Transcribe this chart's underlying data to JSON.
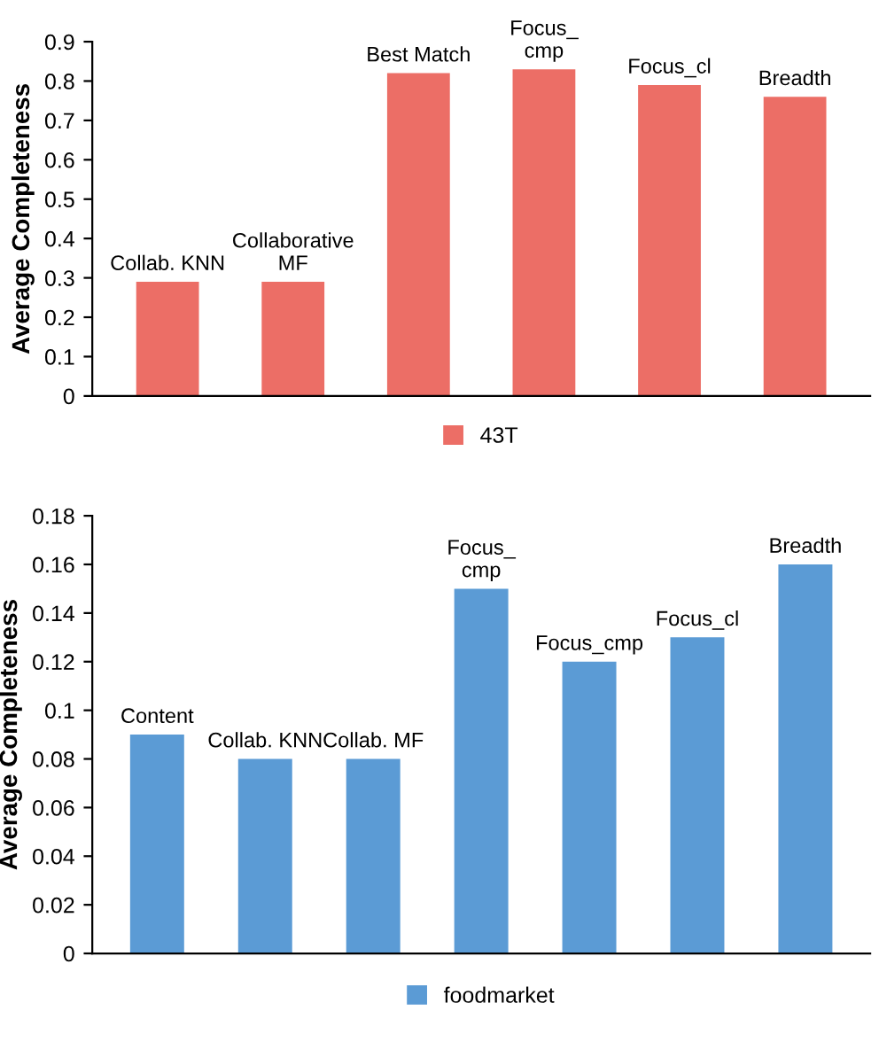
{
  "chart_data": [
    {
      "type": "bar",
      "ylabel": "Average Completeness",
      "categories": [
        "Collab. KNN",
        "Collaborative\nMF",
        "Best Match",
        "Focus_\ncmp",
        "Focus_cl",
        "Breadth"
      ],
      "series": [
        {
          "name": "43T",
          "color": "#ec6e66",
          "values": [
            0.29,
            0.29,
            0.82,
            0.83,
            0.79,
            0.76
          ]
        }
      ],
      "ylim": [
        0,
        0.9
      ],
      "yticks": [
        0,
        0.1,
        0.2,
        0.3,
        0.4,
        0.5,
        0.6,
        0.7,
        0.8,
        0.9
      ],
      "grid": false,
      "legend": "bottom"
    },
    {
      "type": "bar",
      "ylabel": "Average Completeness",
      "categories": [
        "Content",
        "Collab. KNN",
        "Collab. MF",
        "Focus_\ncmp",
        "Focus_cmp",
        "Focus_cl",
        "Breadth"
      ],
      "series": [
        {
          "name": "foodmarket",
          "color": "#5b9bd5",
          "values": [
            0.09,
            0.08,
            0.08,
            0.15,
            0.12,
            0.13,
            0.16
          ]
        }
      ],
      "ylim": [
        0,
        0.18
      ],
      "yticks": [
        0,
        0.02,
        0.04,
        0.06,
        0.08,
        0.1,
        0.12,
        0.14,
        0.16,
        0.18
      ],
      "grid": false,
      "legend": "bottom"
    }
  ]
}
